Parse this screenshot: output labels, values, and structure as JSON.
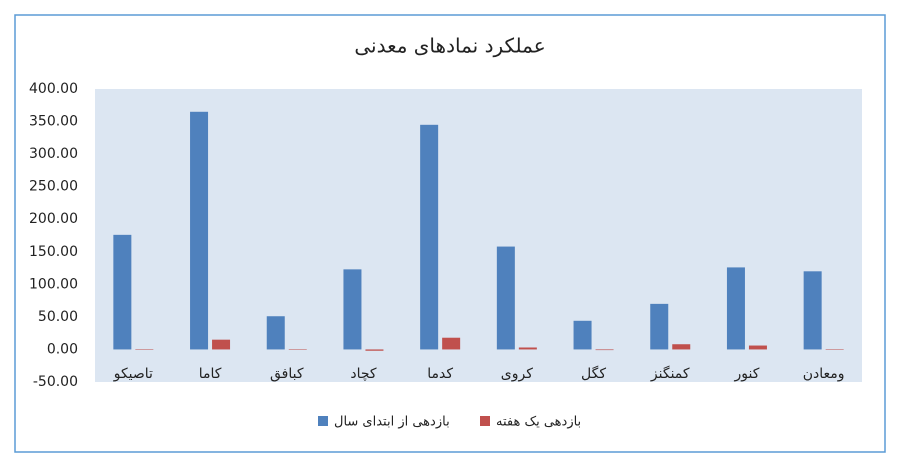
{
  "chart_data": {
    "type": "bar",
    "title": "عملکرد نمادهای معدنی",
    "categories": [
      "تاصیکو",
      "کاما",
      "کبافق",
      "کچاد",
      "کدما",
      "کروی",
      "کگل",
      "کمنگنز",
      "کنور",
      "ومعادن"
    ],
    "series": [
      {
        "name": "بازدهی از ابتدای سال",
        "color": "#4f81bd",
        "values": [
          176,
          365,
          51,
          123,
          345,
          158,
          44,
          70,
          126,
          120
        ]
      },
      {
        "name": "بازدهی یک هفته",
        "color": "#c0504d",
        "values": [
          0,
          15,
          0,
          -2,
          18,
          3,
          -1,
          8,
          6,
          0
        ]
      }
    ],
    "ylim": [
      -50,
      400
    ],
    "yticks": [
      {
        "value": -50,
        "label": "-50.00"
      },
      {
        "value": 0,
        "label": "0.00"
      },
      {
        "value": 50,
        "label": "50.00"
      },
      {
        "value": 100,
        "label": "100.00"
      },
      {
        "value": 150,
        "label": "150.00"
      },
      {
        "value": 200,
        "label": "200.00"
      },
      {
        "value": 250,
        "label": "250.00"
      },
      {
        "value": 300,
        "label": "300.00"
      },
      {
        "value": 350,
        "label": "350.00"
      },
      {
        "value": 400,
        "label": "400.00"
      }
    ],
    "grid": false,
    "legend": "bottom"
  }
}
